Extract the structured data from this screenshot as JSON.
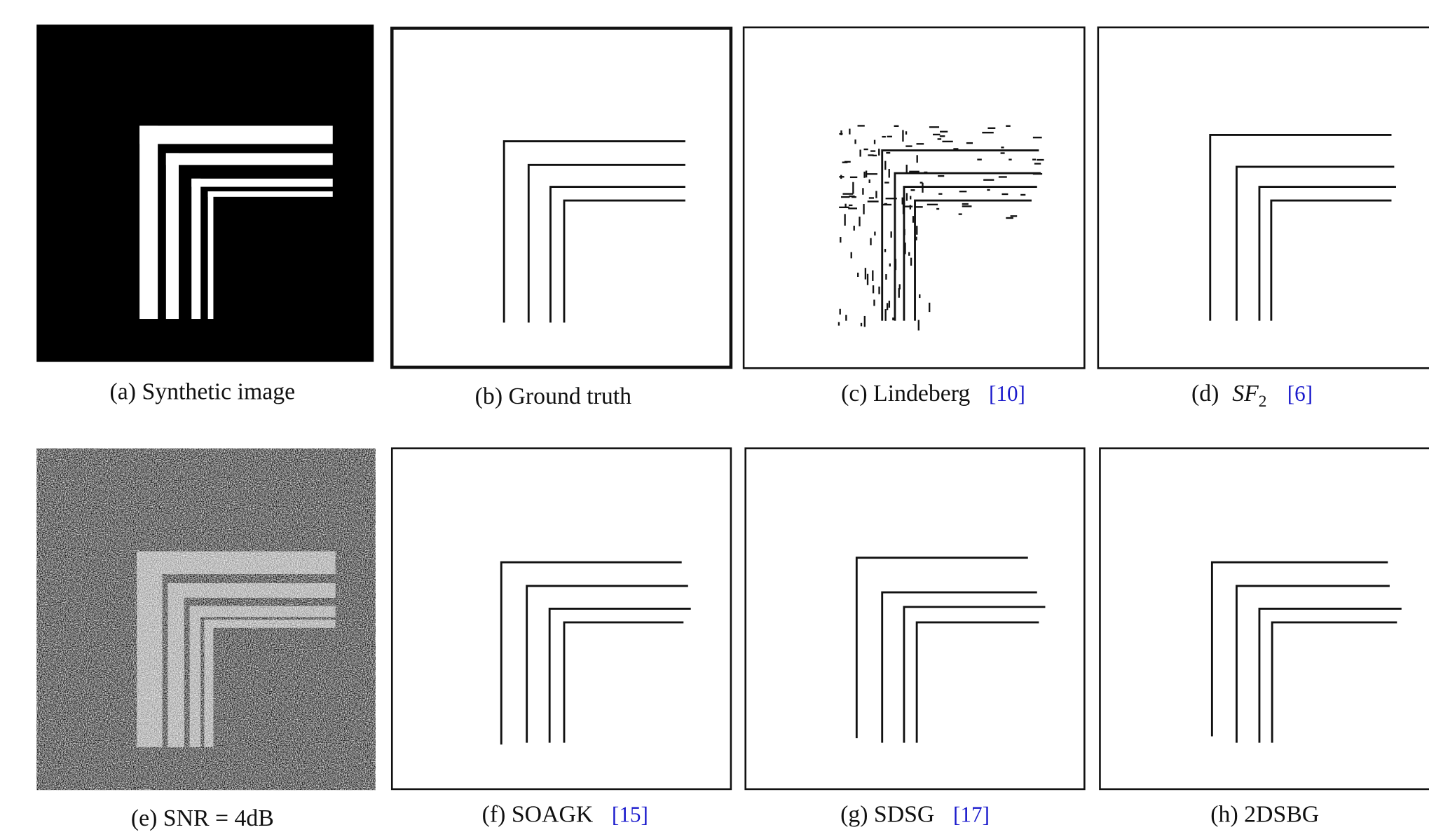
{
  "panels": [
    {
      "label": "(a) Synthetic image"
    },
    {
      "label": "(b) Ground truth"
    },
    {
      "label": "(c) Lindeberg",
      "ref": "[10]"
    },
    {
      "label": "(d)",
      "math": "SF",
      "math_sub": "2",
      "ref": "[6]"
    },
    {
      "label": "(e) SNR = 4dB"
    },
    {
      "label": "(f) SOAGK",
      "ref": "[15]"
    },
    {
      "label": "(g) SDSG",
      "ref": "[17]"
    },
    {
      "label": "(h) 2DSBG"
    }
  ]
}
